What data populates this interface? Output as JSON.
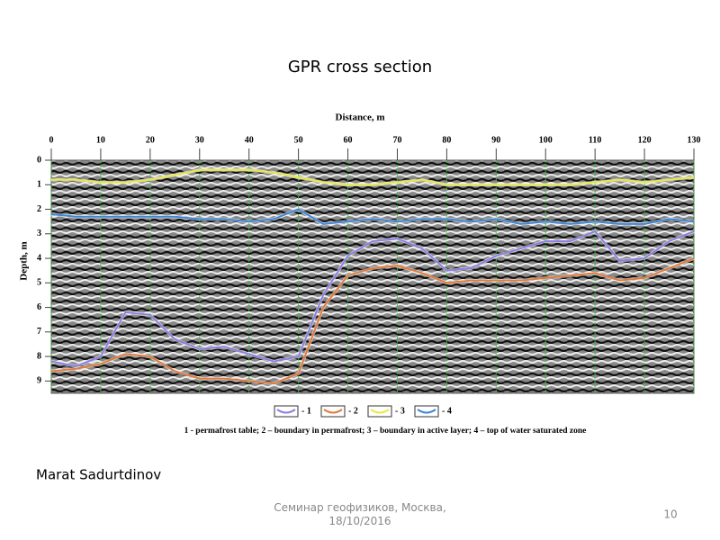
{
  "slide": {
    "title": "GPR cross section",
    "author": "Marat Sadurtdinov",
    "footer": "Семинар геофизиков, Москва, 18/10/2016",
    "page_number": "10"
  },
  "chart_data": {
    "type": "line",
    "xlabel": "Distance, m",
    "ylabel": "Depth, m",
    "caption": "1 - permafrost table; 2 – boundary in permafrost; 3 – boundary in active layer; 4 – top of water saturated zone",
    "x": [
      0,
      5,
      10,
      15,
      20,
      25,
      30,
      35,
      40,
      45,
      50,
      55,
      60,
      65,
      70,
      75,
      80,
      85,
      90,
      95,
      100,
      105,
      110,
      115,
      120,
      125,
      130
    ],
    "series": [
      {
        "name": "- 1",
        "color": "#8a7fe0",
        "values": [
          8.2,
          8.4,
          8.0,
          6.2,
          6.3,
          7.3,
          7.7,
          7.6,
          7.9,
          8.2,
          8.0,
          5.5,
          3.9,
          3.3,
          3.2,
          3.6,
          4.5,
          4.4,
          3.9,
          3.6,
          3.3,
          3.3,
          2.9,
          4.1,
          4.0,
          3.3,
          2.9
        ]
      },
      {
        "name": "- 2",
        "color": "#e07a3c",
        "values": [
          8.6,
          8.5,
          8.3,
          7.9,
          8.0,
          8.6,
          8.9,
          8.9,
          9.0,
          9.1,
          8.7,
          6.0,
          4.7,
          4.4,
          4.3,
          4.6,
          5.0,
          4.9,
          4.9,
          4.9,
          4.8,
          4.7,
          4.6,
          4.9,
          4.8,
          4.4,
          4.0
        ]
      },
      {
        "name": "- 3",
        "color": "#e8e84a",
        "values": [
          0.8,
          0.8,
          0.9,
          0.9,
          0.8,
          0.6,
          0.4,
          0.4,
          0.4,
          0.5,
          0.7,
          0.9,
          1.0,
          1.0,
          0.9,
          0.8,
          1.0,
          1.0,
          1.0,
          1.0,
          1.0,
          1.0,
          0.9,
          0.8,
          0.9,
          0.8,
          0.7
        ]
      },
      {
        "name": "- 4",
        "color": "#3f86d6",
        "values": [
          2.2,
          2.3,
          2.3,
          2.3,
          2.3,
          2.3,
          2.4,
          2.4,
          2.5,
          2.4,
          2.0,
          2.6,
          2.5,
          2.4,
          2.5,
          2.4,
          2.4,
          2.5,
          2.4,
          2.6,
          2.5,
          2.6,
          2.5,
          2.6,
          2.6,
          2.4,
          2.5
        ]
      }
    ],
    "xlim": [
      0,
      130
    ],
    "xticks": [
      0,
      10,
      20,
      30,
      40,
      50,
      60,
      70,
      80,
      90,
      100,
      110,
      120,
      130
    ],
    "ylim": [
      0,
      9.5
    ],
    "yticks": [
      0,
      1,
      2,
      3,
      4,
      5,
      6,
      7,
      8,
      9
    ],
    "y_inverted": true,
    "grid": true,
    "grid_color": "#3fbf3f"
  }
}
